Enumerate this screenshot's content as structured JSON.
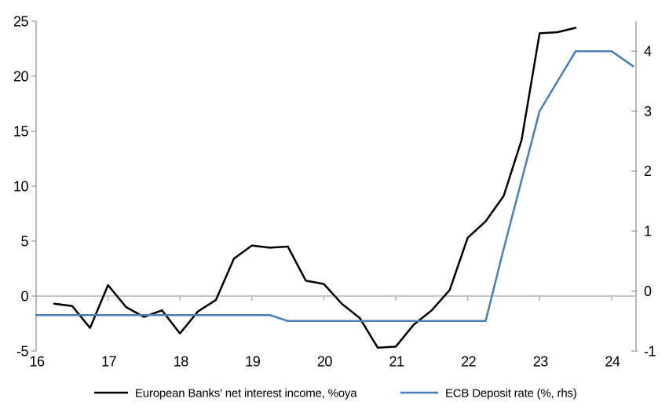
{
  "chart_data": {
    "type": "line",
    "title": "",
    "x_axis": {
      "min": 16,
      "max": 24.34,
      "tick_values": [
        16,
        17,
        18,
        19,
        20,
        21,
        22,
        23,
        24
      ],
      "tick_labels": [
        "16",
        "17",
        "18",
        "19",
        "20",
        "21",
        "22",
        "23",
        "24"
      ]
    },
    "left_axis": {
      "min": -5,
      "max": 25,
      "ticks": [
        -5,
        0,
        5,
        10,
        15,
        20,
        25
      ],
      "tick_labels": [
        "-5",
        "0",
        "5",
        "10",
        "15",
        "20",
        "25"
      ]
    },
    "right_axis": {
      "min": -1,
      "max": 4.5,
      "ticks": [
        -1,
        0,
        1,
        2,
        3,
        4
      ],
      "tick_labels": [
        "-1",
        "0",
        "1",
        "2",
        "3",
        "4"
      ]
    },
    "grid": "zero-line-only",
    "legend_position": "bottom",
    "series": [
      {
        "name": "European Banks' net interest income, %oya",
        "axis": "left",
        "color": "#000000",
        "x": [
          16.25,
          16.5,
          16.75,
          17.0,
          17.25,
          17.5,
          17.75,
          18.0,
          18.25,
          18.5,
          18.75,
          19.0,
          19.25,
          19.5,
          19.75,
          20.0,
          20.25,
          20.5,
          20.75,
          21.0,
          21.25,
          21.5,
          21.75,
          22.0,
          22.25,
          22.5,
          22.75,
          23.0,
          23.25,
          23.5
        ],
        "values": [
          -0.7,
          -0.9,
          -2.9,
          1.0,
          -1.0,
          -1.9,
          -1.3,
          -3.4,
          -1.4,
          -0.35,
          3.4,
          4.6,
          4.4,
          4.5,
          1.4,
          1.1,
          -0.7,
          -2.0,
          -4.7,
          -4.6,
          -2.6,
          -1.3,
          0.55,
          5.3,
          6.8,
          9.1,
          14.2,
          23.9,
          24.0,
          24.4
        ]
      },
      {
        "name": "ECB Deposit rate (%, rhs)",
        "axis": "right",
        "color": "#4a7ebb",
        "x": [
          16.0,
          16.25,
          16.5,
          16.75,
          17.0,
          17.25,
          17.5,
          17.75,
          18.0,
          18.25,
          18.5,
          18.75,
          19.0,
          19.25,
          19.5,
          19.75,
          20.0,
          20.25,
          20.5,
          20.75,
          21.0,
          21.25,
          21.5,
          21.75,
          22.0,
          22.25,
          22.5,
          22.75,
          23.0,
          23.25,
          23.5,
          23.75,
          24.0,
          24.3
        ],
        "values": [
          -0.4,
          -0.4,
          -0.4,
          -0.4,
          -0.4,
          -0.4,
          -0.4,
          -0.4,
          -0.4,
          -0.4,
          -0.4,
          -0.4,
          -0.4,
          -0.4,
          -0.5,
          -0.5,
          -0.5,
          -0.5,
          -0.5,
          -0.5,
          -0.5,
          -0.5,
          -0.5,
          -0.5,
          -0.5,
          -0.5,
          0.7,
          1.85,
          3.0,
          3.5,
          4.0,
          4.0,
          4.0,
          3.75
        ]
      }
    ],
    "colors": {
      "axis_line": "#a6a6a6",
      "zero_line": "#b0b0b0",
      "text": "#000000",
      "background": "#ffffff"
    }
  }
}
